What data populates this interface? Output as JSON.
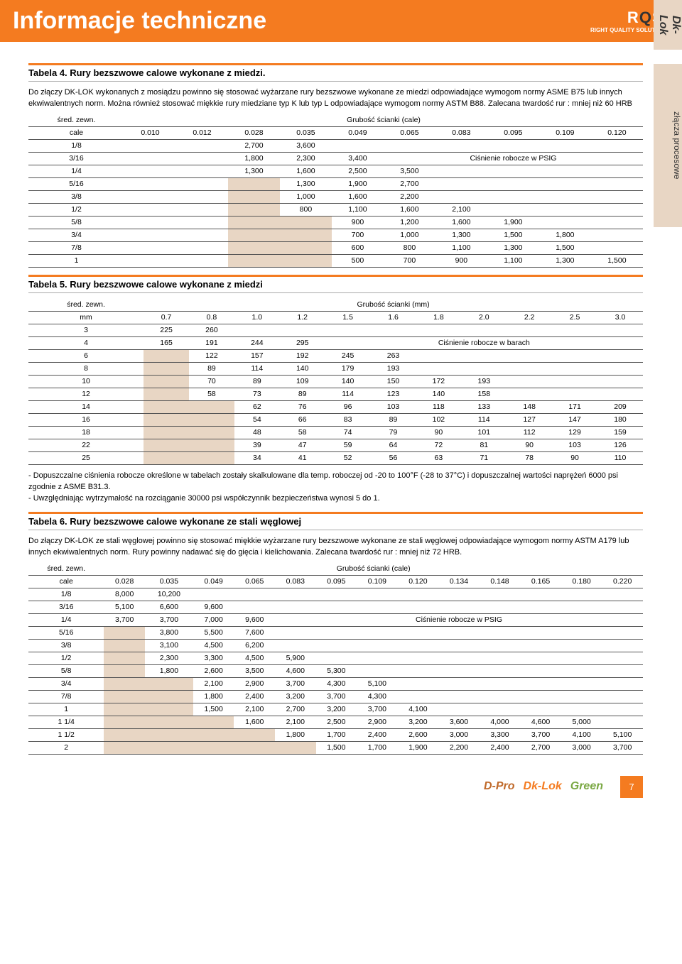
{
  "side_tab_top": "Dk-Lok",
  "side_tab_mid": "złącza procesowe",
  "page_title": "Informacje techniczne",
  "logo": {
    "brand": "RQS",
    "tag": "RIGHT QUALITY SOLUTIONS"
  },
  "table4": {
    "title": "Tabela 4. Rury bezszwowe calowe wykonane z miedzi.",
    "intro": "Do złączy DK-LOK wykonanych z mosiądzu powinno się stosować wyżarzane rury bezszwowe wykonane ze miedzi odpowiadające wymogom normy ASME B75 lub innych ekwiwalentnych norm. Można również stosować miękkie rury miedziane typ K lub typ L odpowiadające wymogom normy ASTM B88. Zalecana twardość rur : mniej niż 60 HRB",
    "row_header": "śred. zewn.",
    "col_header": "Grubość ścianki (cale)",
    "unit": "cale",
    "thickness": [
      "0.010",
      "0.012",
      "0.028",
      "0.035",
      "0.049",
      "0.065",
      "0.083",
      "0.095",
      "0.109",
      "0.120"
    ],
    "psig_label": "Ciśnienie robocze w PSIG",
    "rows": [
      {
        "d": "1/8",
        "v": [
          "",
          "",
          "2,700",
          "3,600",
          "",
          "",
          "",
          "",
          "",
          ""
        ]
      },
      {
        "d": "3/16",
        "v": [
          "",
          "",
          "1,800",
          "2,300",
          "3,400",
          "",
          "",
          "",
          "",
          ""
        ],
        "psig": true
      },
      {
        "d": "1/4",
        "v": [
          "",
          "",
          "1,300",
          "1,600",
          "2,500",
          "3,500",
          "",
          "",
          "",
          ""
        ]
      },
      {
        "d": "5/16",
        "v": [
          "",
          "",
          "",
          "1,300",
          "1,900",
          "2,700",
          "",
          "",
          "",
          ""
        ]
      },
      {
        "d": "3/8",
        "v": [
          "",
          "",
          "",
          "1,000",
          "1,600",
          "2,200",
          "",
          "",
          "",
          ""
        ]
      },
      {
        "d": "1/2",
        "v": [
          "",
          "",
          "",
          "800",
          "1,100",
          "1,600",
          "2,100",
          "",
          "",
          ""
        ]
      },
      {
        "d": "5/8",
        "v": [
          "",
          "",
          "",
          "",
          "900",
          "1,200",
          "1,600",
          "1,900",
          "",
          ""
        ]
      },
      {
        "d": "3/4",
        "v": [
          "",
          "",
          "",
          "",
          "700",
          "1,000",
          "1,300",
          "1,500",
          "1,800",
          ""
        ]
      },
      {
        "d": "7/8",
        "v": [
          "",
          "",
          "",
          "",
          "600",
          "800",
          "1,100",
          "1,300",
          "1,500",
          ""
        ]
      },
      {
        "d": "1",
        "v": [
          "",
          "",
          "",
          "",
          "500",
          "700",
          "900",
          "1,100",
          "1,300",
          "1,500"
        ]
      }
    ]
  },
  "table5": {
    "title": "Tabela 5. Rury bezszwowe calowe wykonane z miedzi",
    "row_header": "śred. zewn.",
    "col_header": "Grubość ścianki (mm)",
    "unit": "mm",
    "thickness": [
      "0.7",
      "0.8",
      "1.0",
      "1.2",
      "1.5",
      "1.6",
      "1.8",
      "2.0",
      "2.2",
      "2.5",
      "3.0"
    ],
    "psig_label": "Ciśnienie robocze w barach",
    "rows": [
      {
        "d": "3",
        "v": [
          "225",
          "260",
          "",
          "",
          "",
          "",
          "",
          "",
          "",
          "",
          ""
        ]
      },
      {
        "d": "4",
        "v": [
          "165",
          "191",
          "244",
          "295",
          "",
          "",
          "",
          "",
          "",
          "",
          ""
        ],
        "psig": true
      },
      {
        "d": "6",
        "v": [
          "",
          "122",
          "157",
          "192",
          "245",
          "263",
          "",
          "",
          "",
          "",
          ""
        ]
      },
      {
        "d": "8",
        "v": [
          "",
          "89",
          "114",
          "140",
          "179",
          "193",
          "",
          "",
          "",
          "",
          ""
        ]
      },
      {
        "d": "10",
        "v": [
          "",
          "70",
          "89",
          "109",
          "140",
          "150",
          "172",
          "193",
          "",
          "",
          ""
        ]
      },
      {
        "d": "12",
        "v": [
          "",
          "58",
          "73",
          "89",
          "114",
          "123",
          "140",
          "158",
          "",
          "",
          ""
        ]
      },
      {
        "d": "14",
        "v": [
          "",
          "",
          "62",
          "76",
          "96",
          "103",
          "118",
          "133",
          "148",
          "171",
          "209"
        ]
      },
      {
        "d": "16",
        "v": [
          "",
          "",
          "54",
          "66",
          "83",
          "89",
          "102",
          "114",
          "127",
          "147",
          "180"
        ]
      },
      {
        "d": "18",
        "v": [
          "",
          "",
          "48",
          "58",
          "74",
          "79",
          "90",
          "101",
          "112",
          "129",
          "159"
        ]
      },
      {
        "d": "22",
        "v": [
          "",
          "",
          "39",
          "47",
          "59",
          "64",
          "72",
          "81",
          "90",
          "103",
          "126"
        ]
      },
      {
        "d": "25",
        "v": [
          "",
          "",
          "34",
          "41",
          "52",
          "56",
          "63",
          "71",
          "78",
          "90",
          "110"
        ]
      }
    ]
  },
  "notes_between": "- Dopuszczalne ciśnienia robocze określone w tabelach zostały skalkulowane dla temp. roboczej od -20 to 100°F (-28 to 37°C) i dopuszczalnej wartości naprężeń 6000 psi zgodnie z ASME B31.3.\n- Uwzględniając wytrzymałość na rozciąganie 30000 psi współczynnik bezpieczeństwa wynosi 5 do 1.",
  "table6": {
    "title": "Tabela 6. Rury bezszwowe calowe wykonane ze stali węglowej",
    "intro": "Do złączy DK-LOK ze stali węglowej powinno się stosować miękkie wyżarzane rury bezszwowe wykonane ze stali węglowej odpowiadające wymogom normy ASTM A179 lub innych ekwiwalentnych norm.  Rury powinny nadawać się do gięcia i kielichowania. Zalecana twardość rur : mniej niż 72 HRB.",
    "row_header": "śred. zewn.",
    "col_header": "Grubość ścianki (cale)",
    "unit": "cale",
    "thickness": [
      "0.028",
      "0.035",
      "0.049",
      "0.065",
      "0.083",
      "0.095",
      "0.109",
      "0.120",
      "0.134",
      "0.148",
      "0.165",
      "0.180",
      "0.220"
    ],
    "psig_label": "Ciśnienie robocze w PSIG",
    "rows": [
      {
        "d": "1/8",
        "v": [
          "8,000",
          "10,200",
          "",
          "",
          "",
          "",
          "",
          "",
          "",
          "",
          "",
          "",
          ""
        ]
      },
      {
        "d": "3/16",
        "v": [
          "5,100",
          "6,600",
          "9,600",
          "",
          "",
          "",
          "",
          "",
          "",
          "",
          "",
          "",
          ""
        ]
      },
      {
        "d": "1/4",
        "v": [
          "3,700",
          "3,700",
          "7,000",
          "9,600",
          "",
          "",
          "",
          "",
          "",
          "",
          "",
          "",
          ""
        ],
        "psig": true
      },
      {
        "d": "5/16",
        "v": [
          "",
          "3,800",
          "5,500",
          "7,600",
          "",
          "",
          "",
          "",
          "",
          "",
          "",
          "",
          ""
        ]
      },
      {
        "d": "3/8",
        "v": [
          "",
          "3,100",
          "4,500",
          "6,200",
          "",
          "",
          "",
          "",
          "",
          "",
          "",
          "",
          ""
        ]
      },
      {
        "d": "1/2",
        "v": [
          "",
          "2,300",
          "3,300",
          "4,500",
          "5,900",
          "",
          "",
          "",
          "",
          "",
          "",
          "",
          ""
        ]
      },
      {
        "d": "5/8",
        "v": [
          "",
          "1,800",
          "2,600",
          "3,500",
          "4,600",
          "5,300",
          "",
          "",
          "",
          "",
          "",
          "",
          ""
        ]
      },
      {
        "d": "3/4",
        "v": [
          "",
          "",
          "2,100",
          "2,900",
          "3,700",
          "4,300",
          "5,100",
          "",
          "",
          "",
          "",
          "",
          ""
        ]
      },
      {
        "d": "7/8",
        "v": [
          "",
          "",
          "1,800",
          "2,400",
          "3,200",
          "3,700",
          "4,300",
          "",
          "",
          "",
          "",
          "",
          ""
        ]
      },
      {
        "d": "1",
        "v": [
          "",
          "",
          "1,500",
          "2,100",
          "2,700",
          "3,200",
          "3,700",
          "4,100",
          "",
          "",
          "",
          "",
          ""
        ]
      },
      {
        "d": "1 1/4",
        "v": [
          "",
          "",
          "",
          "1,600",
          "2,100",
          "2,500",
          "2,900",
          "3,200",
          "3,600",
          "4,000",
          "4,600",
          "5,000",
          ""
        ]
      },
      {
        "d": "1 1/2",
        "v": [
          "",
          "",
          "",
          "",
          "1,800",
          "1,700",
          "2,400",
          "2,600",
          "3,000",
          "3,300",
          "3,700",
          "4,100",
          "5,100"
        ]
      },
      {
        "d": "2",
        "v": [
          "",
          "",
          "",
          "",
          "",
          "1,500",
          "1,700",
          "1,900",
          "2,200",
          "2,400",
          "2,700",
          "3,000",
          "3,700"
        ]
      }
    ]
  },
  "footer": {
    "b1": "D-Pro",
    "b2": "Dk-Lok",
    "b3": "Green",
    "page": "7"
  },
  "colors": {
    "accent": "#f47b20",
    "shaded": "#e8d6c4",
    "rule": "#555555"
  }
}
